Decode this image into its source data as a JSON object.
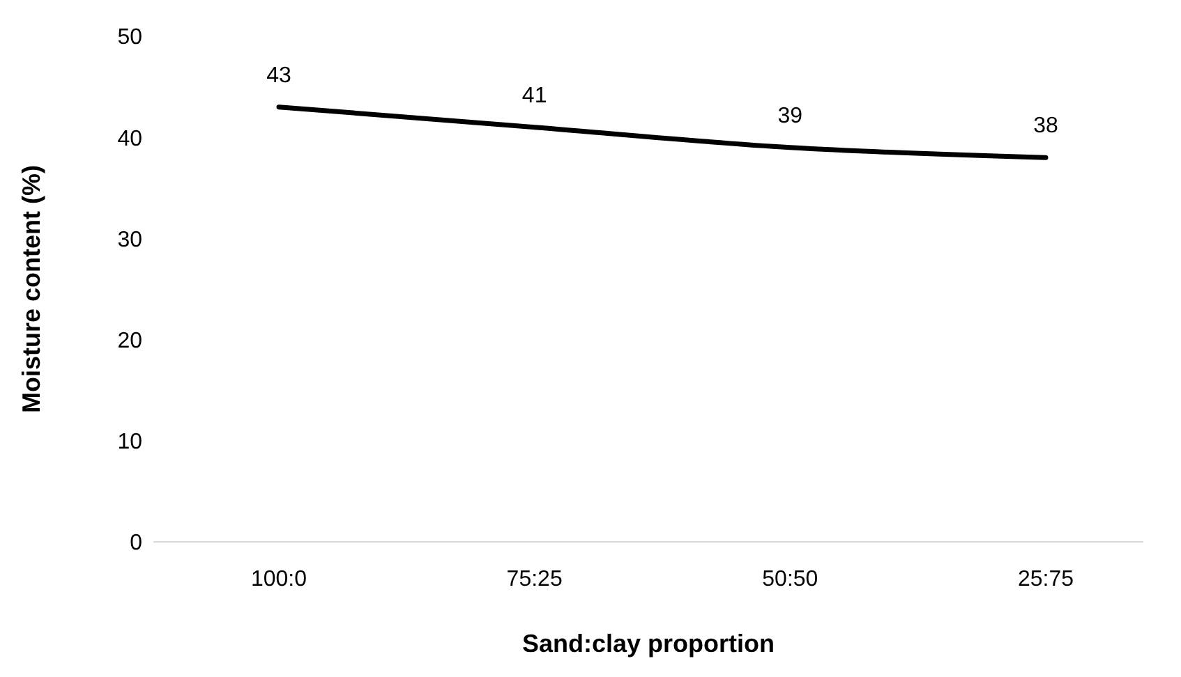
{
  "chart_data": {
    "type": "line",
    "xlabel": "Sand:clay proportion",
    "ylabel": "Moisture content (%)",
    "categories": [
      "100:0",
      "75:25",
      "50:50",
      "25:75"
    ],
    "series": [
      {
        "color": "#000000",
        "values": [
          43,
          41,
          39,
          38
        ]
      }
    ],
    "ylim": [
      0,
      50
    ],
    "yticks": [
      0,
      10,
      20,
      30,
      40,
      50
    ],
    "data_labels": true,
    "grid": false,
    "marker": "none",
    "line_style": "solid"
  }
}
